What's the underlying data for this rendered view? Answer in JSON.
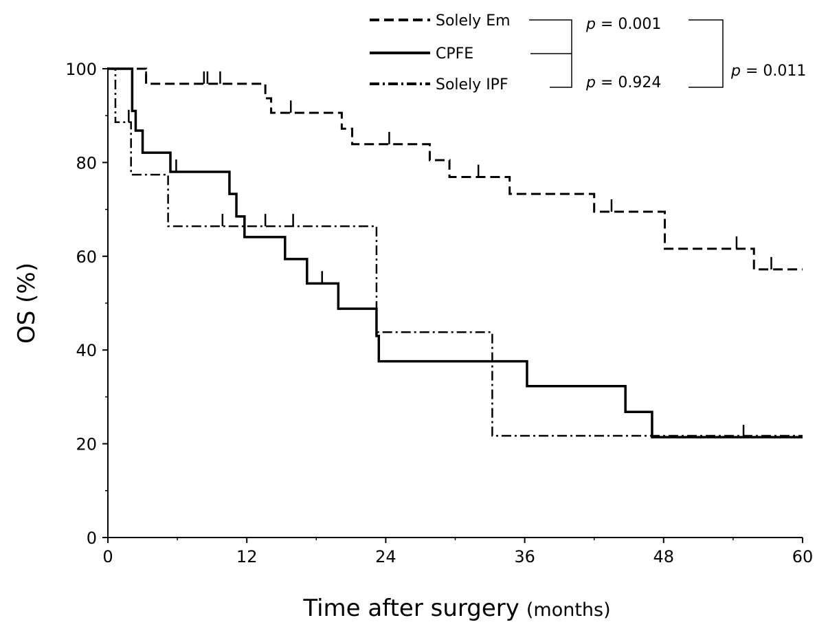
{
  "chart_data": {
    "type": "line",
    "subtype": "kaplan-meier step",
    "xlabel": "Time after surgery",
    "xlabel_unit": "(months)",
    "ylabel": "OS (%)",
    "xlim": [
      0,
      60
    ],
    "ylim": [
      0,
      100
    ],
    "xticks": [
      "0",
      "12",
      "24",
      "36",
      "48",
      "60"
    ],
    "yticks": [
      "0",
      "20",
      "40",
      "60",
      "80",
      "100"
    ],
    "grid": false,
    "legend_position": "top-right",
    "series": [
      {
        "name": "Solely Em",
        "line_style": "dashed",
        "steps": [
          [
            0,
            100
          ],
          [
            3.3,
            96.8
          ],
          [
            13.6,
            93.7
          ],
          [
            14.1,
            90.6
          ],
          [
            20.2,
            87.2
          ],
          [
            21.1,
            83.9
          ],
          [
            27.8,
            80.5
          ],
          [
            29.5,
            76.9
          ],
          [
            34.7,
            73.3
          ],
          [
            42.0,
            69.5
          ],
          [
            48.1,
            61.6
          ],
          [
            55.8,
            57.2
          ],
          [
            60,
            57.2
          ]
        ],
        "censored": [
          3.3,
          8.3,
          8.6,
          9.7,
          15.8,
          24.3,
          32.0,
          43.5,
          54.3,
          57.3
        ]
      },
      {
        "name": "CPFE",
        "line_style": "solid",
        "steps": [
          [
            0,
            100
          ],
          [
            2.1,
            91.0
          ],
          [
            2.4,
            86.8
          ],
          [
            3.0,
            82.1
          ],
          [
            5.4,
            78.0
          ],
          [
            10.5,
            73.3
          ],
          [
            11.1,
            68.5
          ],
          [
            11.8,
            64.1
          ],
          [
            15.3,
            59.4
          ],
          [
            17.2,
            54.2
          ],
          [
            19.9,
            48.8
          ],
          [
            23.2,
            43.0
          ],
          [
            23.4,
            37.6
          ],
          [
            36.2,
            32.3
          ],
          [
            44.7,
            26.8
          ],
          [
            47.0,
            21.4
          ],
          [
            60,
            21.4
          ]
        ],
        "censored": [
          5.9,
          18.5,
          54.9
        ]
      },
      {
        "name": "Solely IPF",
        "line_style": "dash-dot",
        "steps": [
          [
            0,
            100
          ],
          [
            0.65,
            88.6
          ],
          [
            2.0,
            77.4
          ],
          [
            5.2,
            66.4
          ],
          [
            23.2,
            43.8
          ],
          [
            33.2,
            21.7
          ],
          [
            60,
            21.7
          ]
        ],
        "censored": [
          1.8,
          9.9,
          13.6,
          16.0
        ]
      }
    ],
    "comparisons": [
      {
        "label_p": "p",
        "value": " = 0.001",
        "between": [
          "Solely Em",
          "CPFE"
        ]
      },
      {
        "label_p": "p",
        "value": " = 0.924",
        "between": [
          "CPFE",
          "Solely IPF"
        ]
      },
      {
        "label_p": "p",
        "value": " = 0.011",
        "between": [
          "Solely Em",
          "Solely IPF"
        ]
      }
    ]
  }
}
